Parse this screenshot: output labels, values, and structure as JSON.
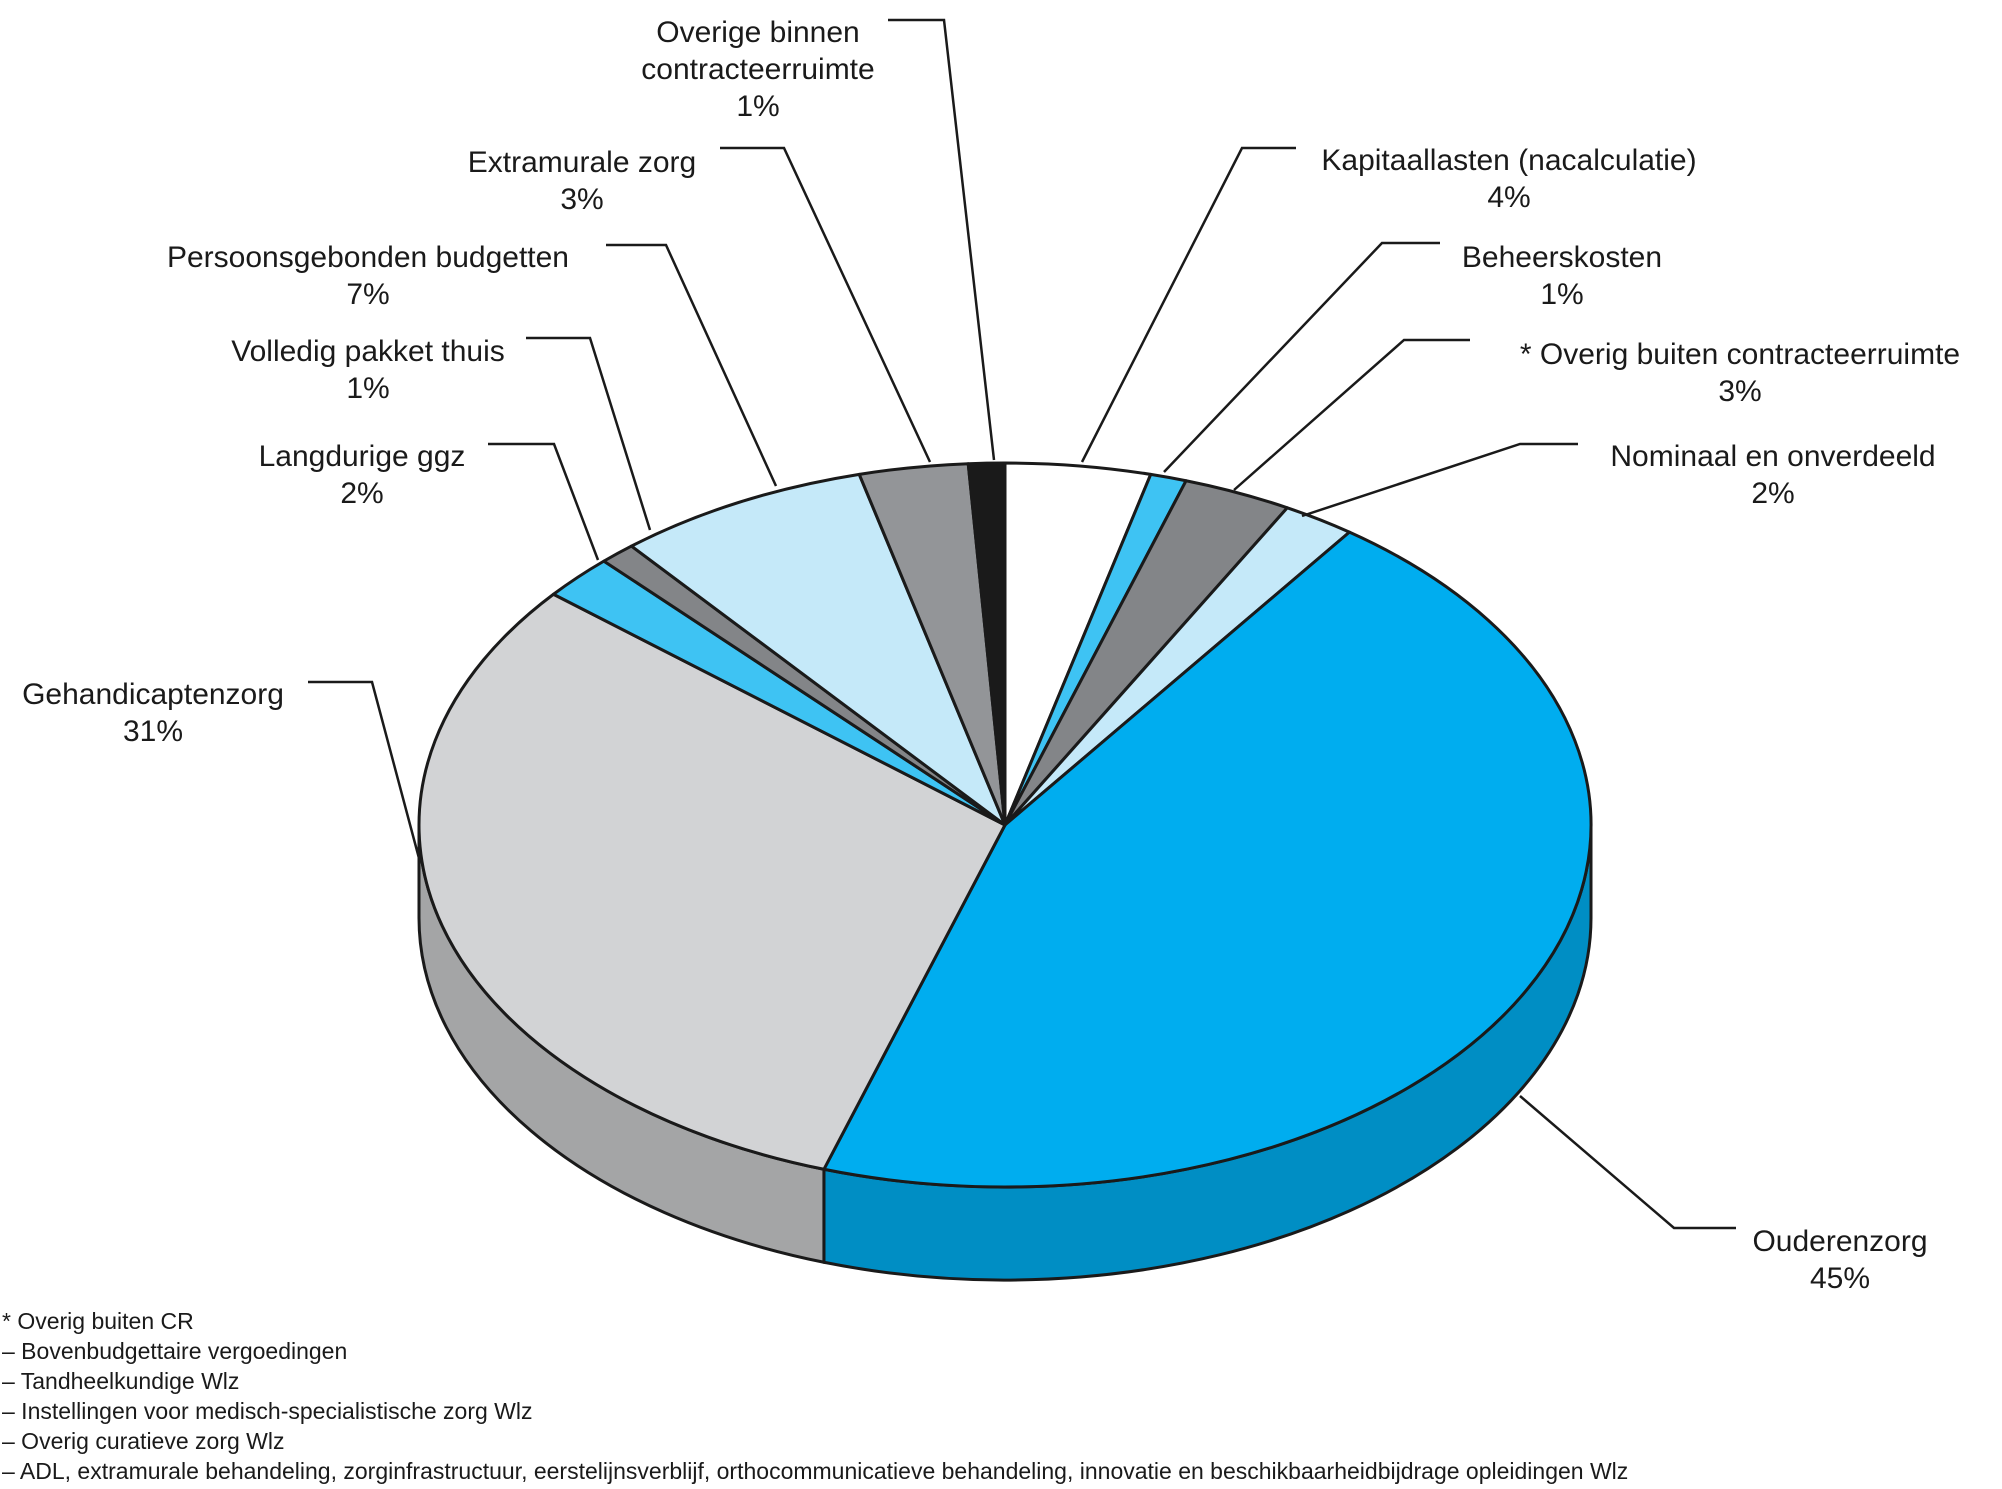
{
  "chart_data": {
    "type": "pie",
    "style": "3d",
    "title": "",
    "slices": [
      {
        "label": "Kapitaallasten (nacalculatie)",
        "value_label": "4%",
        "value": 4,
        "color": "#ffffff"
      },
      {
        "label": "Beheerskosten",
        "value_label": "1%",
        "value": 1,
        "color": "#3ec3f3"
      },
      {
        "label": "* Overig buiten contracteerruimte",
        "value_label": "3%",
        "value": 3,
        "color": "#838588"
      },
      {
        "label": "Nominaal en onverdeeld",
        "value_label": "2%",
        "value": 2,
        "color": "#c5e9f9"
      },
      {
        "label": "Ouderenzorg",
        "value_label": "45%",
        "value": 45,
        "color": "#00adef"
      },
      {
        "label": "Gehandicaptenzorg",
        "value_label": "31%",
        "value": 31,
        "color": "#d2d3d5"
      },
      {
        "label": "Langdurige ggz",
        "value_label": "2%",
        "value": 2,
        "color": "#3ec3f3"
      },
      {
        "label": "Volledig pakket thuis",
        "value_label": "1%",
        "value": 1,
        "color": "#838588"
      },
      {
        "label": "Persoonsgebonden budgetten",
        "value_label": "7%",
        "value": 7,
        "color": "#c5e9f9"
      },
      {
        "label": "Extramurale zorg",
        "value_label": "3%",
        "value": 3,
        "color": "#939598"
      },
      {
        "label": "Overige binnen contracteerruimte",
        "value_label": "1%",
        "value": 1,
        "color": "#1a1a1a"
      }
    ]
  },
  "footnote": {
    "lines": [
      "* Overig buiten CR",
      "– Bovenbudgettaire vergoedingen",
      "– Tandheelkundige Wlz",
      "– Instellingen voor medisch-specialistische zorg Wlz",
      "– Overig curatieve zorg Wlz",
      "– ADL, extramurale behandeling, zorginfrastructuur, eerstelijnsverblijf, orthocommunicatieve behandeling, innovatie en beschikbaarheidbijdrage opleidingen Wlz"
    ]
  }
}
